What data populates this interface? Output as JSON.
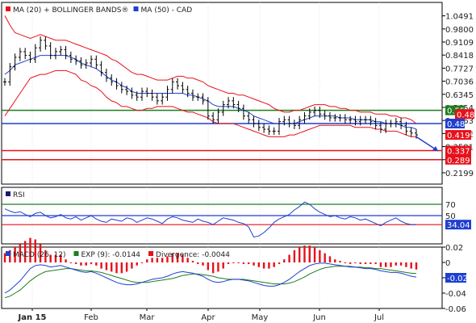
{
  "chart_data": [
    {
      "type": "line",
      "panel": "price",
      "legend_items": [
        {
          "label": "MA (20) + BOLLINGER BANDS®",
          "color": "#e8101a"
        },
        {
          "label": "MA (50) - CAD",
          "color": "#1f3fd0"
        }
      ],
      "ylim": [
        0.16,
        1.12
      ],
      "y_ticks": [
        "1.0491",
        "0.9800",
        "0.9109",
        "0.8418",
        "0.7727",
        "0.7036",
        "0.6345",
        "0.5654",
        "0.4963",
        "0.4272",
        "0.3581",
        "0.289",
        "0.2199"
      ],
      "price_badge": {
        "value": "0.4199",
        "color": "#e8101a"
      },
      "ma20_badge": {
        "value": "0.45",
        "color": "#1f3fd0"
      },
      "bb_upper_badge": {
        "value": "0.481",
        "color": "#e8101a"
      },
      "levels": [
        {
          "value": 0.55,
          "label": "0.55",
          "color": "#1e7d1e"
        },
        {
          "value": 0.48,
          "label": "0.48",
          "color": "#1f3fd0"
        },
        {
          "value": 0.337,
          "label": "0.337",
          "color": "#e8101a"
        },
        {
          "value": 0.289,
          "label": "0.289",
          "color": "#e8101a"
        }
      ],
      "forecast_arrow": {
        "from": 0.41,
        "to": 0.335,
        "color": "#1f3fd0"
      },
      "series": [
        {
          "name": "price",
          "values": [
            0.7,
            0.78,
            0.83,
            0.86,
            0.84,
            0.82,
            0.88,
            0.92,
            0.89,
            0.84,
            0.86,
            0.87,
            0.84,
            0.82,
            0.81,
            0.79,
            0.8,
            0.82,
            0.79,
            0.75,
            0.72,
            0.7,
            0.68,
            0.66,
            0.65,
            0.63,
            0.62,
            0.65,
            0.64,
            0.62,
            0.6,
            0.62,
            0.66,
            0.7,
            0.68,
            0.66,
            0.64,
            0.62,
            0.62,
            0.6,
            0.52,
            0.5,
            0.54,
            0.58,
            0.6,
            0.58,
            0.56,
            0.52,
            0.5,
            0.48,
            0.46,
            0.45,
            0.44,
            0.44,
            0.49,
            0.5,
            0.48,
            0.47,
            0.5,
            0.52,
            0.54,
            0.55,
            0.53,
            0.52,
            0.51,
            0.51,
            0.51,
            0.5,
            0.5,
            0.49,
            0.5,
            0.5,
            0.49,
            0.47,
            0.45,
            0.48,
            0.48,
            0.49,
            0.47,
            0.44,
            0.43,
            0.42
          ]
        },
        {
          "name": "ma20",
          "values": [
            0.74,
            0.76,
            0.79,
            0.8,
            0.81,
            0.82,
            0.83,
            0.84,
            0.84,
            0.84,
            0.84,
            0.84,
            0.84,
            0.83,
            0.82,
            0.8,
            0.79,
            0.78,
            0.77,
            0.75,
            0.73,
            0.71,
            0.7,
            0.68,
            0.67,
            0.65,
            0.64,
            0.64,
            0.64,
            0.64,
            0.64,
            0.64,
            0.64,
            0.64,
            0.64,
            0.64,
            0.63,
            0.63,
            0.62,
            0.61,
            0.6,
            0.58,
            0.57,
            0.57,
            0.57,
            0.57,
            0.56,
            0.55,
            0.54,
            0.52,
            0.51,
            0.5,
            0.49,
            0.48,
            0.48,
            0.48,
            0.48,
            0.48,
            0.49,
            0.5,
            0.51,
            0.52,
            0.52,
            0.52,
            0.52,
            0.52,
            0.51,
            0.51,
            0.51,
            0.5,
            0.5,
            0.5,
            0.5,
            0.49,
            0.49,
            0.48,
            0.48,
            0.48,
            0.47,
            0.46,
            0.46,
            0.45
          ]
        },
        {
          "name": "bb_upper",
          "values": [
            1.05,
            1.0,
            0.96,
            0.95,
            0.94,
            0.93,
            0.94,
            0.95,
            0.94,
            0.93,
            0.92,
            0.92,
            0.92,
            0.91,
            0.9,
            0.89,
            0.88,
            0.87,
            0.86,
            0.85,
            0.84,
            0.82,
            0.81,
            0.79,
            0.77,
            0.75,
            0.74,
            0.74,
            0.73,
            0.72,
            0.71,
            0.71,
            0.71,
            0.72,
            0.73,
            0.73,
            0.72,
            0.72,
            0.71,
            0.7,
            0.68,
            0.67,
            0.66,
            0.65,
            0.64,
            0.64,
            0.63,
            0.63,
            0.62,
            0.61,
            0.6,
            0.59,
            0.58,
            0.56,
            0.55,
            0.54,
            0.54,
            0.55,
            0.55,
            0.56,
            0.57,
            0.58,
            0.58,
            0.58,
            0.57,
            0.57,
            0.56,
            0.56,
            0.55,
            0.55,
            0.54,
            0.54,
            0.54,
            0.53,
            0.53,
            0.53,
            0.52,
            0.52,
            0.51,
            0.51,
            0.5,
            0.48
          ]
        },
        {
          "name": "bb_lower",
          "values": [
            0.52,
            0.56,
            0.6,
            0.64,
            0.68,
            0.72,
            0.73,
            0.74,
            0.74,
            0.75,
            0.76,
            0.76,
            0.76,
            0.75,
            0.74,
            0.71,
            0.7,
            0.68,
            0.67,
            0.65,
            0.62,
            0.6,
            0.59,
            0.57,
            0.57,
            0.56,
            0.55,
            0.55,
            0.56,
            0.56,
            0.57,
            0.57,
            0.57,
            0.57,
            0.56,
            0.55,
            0.54,
            0.54,
            0.53,
            0.52,
            0.51,
            0.49,
            0.48,
            0.48,
            0.48,
            0.48,
            0.47,
            0.46,
            0.45,
            0.44,
            0.43,
            0.42,
            0.41,
            0.41,
            0.41,
            0.41,
            0.42,
            0.42,
            0.43,
            0.44,
            0.45,
            0.46,
            0.47,
            0.47,
            0.47,
            0.47,
            0.47,
            0.47,
            0.47,
            0.46,
            0.46,
            0.46,
            0.46,
            0.45,
            0.45,
            0.44,
            0.44,
            0.44,
            0.43,
            0.42,
            0.41,
            0.41
          ]
        }
      ]
    },
    {
      "type": "line",
      "panel": "rsi",
      "legend_items": [
        {
          "label": "RSI",
          "color": "#1a1a6a"
        }
      ],
      "levels": [
        {
          "value": 70,
          "label": "70",
          "color": "#1e7d1e"
        },
        {
          "value": 50,
          "label": "50",
          "color": "#1f3fd0"
        }
      ],
      "level_30_color": "#e8101a",
      "current_badge": {
        "value": "34.04",
        "color": "#1f3fd0"
      },
      "ylim": [
        0,
        100
      ],
      "series": [
        {
          "name": "RSI",
          "values": [
            62,
            58,
            55,
            57,
            52,
            48,
            54,
            56,
            50,
            46,
            48,
            52,
            46,
            44,
            48,
            42,
            46,
            50,
            44,
            40,
            38,
            44,
            42,
            40,
            46,
            44,
            38,
            42,
            46,
            44,
            40,
            36,
            44,
            48,
            46,
            42,
            40,
            38,
            44,
            40,
            38,
            34,
            40,
            46,
            44,
            42,
            38,
            36,
            30,
            12,
            14,
            20,
            28,
            38,
            44,
            48,
            52,
            60,
            66,
            74,
            70,
            62,
            56,
            52,
            48,
            50,
            46,
            44,
            48,
            46,
            42,
            44,
            40,
            36,
            32,
            38,
            42,
            46,
            40,
            36,
            34,
            34
          ]
        }
      ]
    },
    {
      "type": "bar",
      "panel": "macd",
      "legend_items": [
        {
          "label": "MACD (26, 12)",
          "color": "#1f3fd0"
        },
        {
          "label": "EXP (9): -0.0144",
          "color": "#1e7d1e"
        },
        {
          "label": "Divergence: -0.0044",
          "color": "#e8101a"
        }
      ],
      "ylim": [
        -0.06,
        0.02
      ],
      "y_ticks": [
        "0.02",
        "0",
        "-0.02",
        "-0.04",
        "-0.06"
      ],
      "current_badge": {
        "value": "-0.02",
        "color": "#1f3fd0"
      },
      "series": [
        {
          "name": "macd",
          "values": [
            -0.04,
            -0.036,
            -0.03,
            -0.024,
            -0.016,
            -0.008,
            -0.004,
            -0.003,
            -0.004,
            -0.006,
            -0.005,
            -0.004,
            -0.006,
            -0.008,
            -0.01,
            -0.012,
            -0.013,
            -0.012,
            -0.014,
            -0.017,
            -0.02,
            -0.023,
            -0.026,
            -0.028,
            -0.029,
            -0.029,
            -0.028,
            -0.026,
            -0.024,
            -0.022,
            -0.021,
            -0.02,
            -0.018,
            -0.015,
            -0.013,
            -0.012,
            -0.013,
            -0.014,
            -0.016,
            -0.018,
            -0.022,
            -0.025,
            -0.026,
            -0.025,
            -0.023,
            -0.022,
            -0.022,
            -0.023,
            -0.024,
            -0.026,
            -0.028,
            -0.03,
            -0.031,
            -0.031,
            -0.029,
            -0.026,
            -0.022,
            -0.017,
            -0.012,
            -0.008,
            -0.004,
            -0.002,
            -0.001,
            -0.001,
            -0.002,
            -0.003,
            -0.004,
            -0.005,
            -0.006,
            -0.006,
            -0.007,
            -0.008,
            -0.008,
            -0.009,
            -0.011,
            -0.012,
            -0.013,
            -0.013,
            -0.014,
            -0.016,
            -0.018,
            -0.019
          ]
        },
        {
          "name": "signal",
          "values": [
            -0.046,
            -0.044,
            -0.04,
            -0.036,
            -0.03,
            -0.024,
            -0.019,
            -0.015,
            -0.012,
            -0.011,
            -0.01,
            -0.009,
            -0.008,
            -0.008,
            -0.009,
            -0.01,
            -0.011,
            -0.011,
            -0.012,
            -0.013,
            -0.015,
            -0.017,
            -0.019,
            -0.021,
            -0.023,
            -0.025,
            -0.026,
            -0.026,
            -0.026,
            -0.025,
            -0.024,
            -0.023,
            -0.022,
            -0.021,
            -0.019,
            -0.017,
            -0.016,
            -0.015,
            -0.015,
            -0.016,
            -0.017,
            -0.018,
            -0.02,
            -0.021,
            -0.022,
            -0.022,
            -0.022,
            -0.022,
            -0.023,
            -0.024,
            -0.025,
            -0.026,
            -0.027,
            -0.028,
            -0.028,
            -0.028,
            -0.027,
            -0.025,
            -0.022,
            -0.019,
            -0.015,
            -0.012,
            -0.009,
            -0.007,
            -0.006,
            -0.005,
            -0.005,
            -0.005,
            -0.005,
            -0.006,
            -0.006,
            -0.007,
            -0.007,
            -0.008,
            -0.008,
            -0.009,
            -0.01,
            -0.011,
            -0.012,
            -0.013,
            -0.014,
            -0.0144
          ]
        }
      ]
    }
  ],
  "x_axis": {
    "labels": [
      "Jan 15",
      "Feb",
      "Mar",
      "Apr",
      "May",
      "Jun",
      "Jul"
    ],
    "bold_first": true
  }
}
